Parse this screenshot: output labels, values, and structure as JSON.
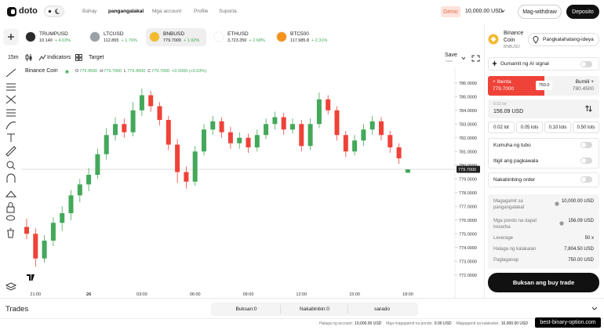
{
  "nav": {
    "logo": "doto",
    "links": [
      "Bahay",
      "pangangalakal",
      "Mga account",
      "Profile",
      "Suporta"
    ],
    "mode": "Demo",
    "balance": "10,000.00 USD",
    "withdraw": "Mag-withdraw",
    "deposit": "Deposito"
  },
  "assets": [
    {
      "name": "TRUMPUSD",
      "price": "10.140",
      "change": "+ 4.03%"
    },
    {
      "name": "LTCUSD",
      "price": "112.865",
      "change": "+ 1.76%"
    },
    {
      "name": "BNBUSD",
      "price": "779.7000",
      "change": "+ 1.92%"
    },
    {
      "name": "ETHUSD",
      "price": "3,723.350",
      "change": "+ 2.68%"
    },
    {
      "name": "BTC500",
      "price": "117,985.8",
      "change": "+ 2.31%"
    }
  ],
  "toolbar": {
    "interval": "15m",
    "indicators": "Indicators",
    "target": "Target",
    "save": "Save",
    "save_sub": "Save"
  },
  "chart_data": {
    "type": "candlestick",
    "title": "Binance Coin",
    "ohlc": [
      {
        "label": "O",
        "value": "779.4500"
      },
      {
        "label": "H",
        "value": "779.7000"
      },
      {
        "label": "L",
        "value": "779.4500"
      },
      {
        "label": "C",
        "value": "779.7000"
      }
    ],
    "change": "+0.2000 (+0.03%)",
    "categories": [
      null,
      "21:00",
      null,
      null,
      null,
      null,
      null,
      "26",
      null,
      null,
      null,
      null,
      null,
      "03:00",
      null,
      null,
      null,
      null,
      null,
      "06:00",
      null,
      null,
      null,
      null,
      null,
      "09:00",
      null,
      null,
      null,
      null,
      null,
      "12:00",
      null,
      null,
      null,
      null,
      null,
      "15:00",
      null,
      null,
      null,
      null,
      null,
      "18:00"
    ],
    "candles": [
      [
        775.5,
        776.1,
        774.6,
        775.0
      ],
      [
        775.0,
        775.4,
        772.6,
        773.2
      ],
      [
        773.2,
        774.9,
        772.9,
        774.5
      ],
      [
        774.5,
        776.2,
        774.1,
        775.8
      ],
      [
        775.8,
        777.0,
        775.2,
        776.5
      ],
      [
        776.5,
        778.2,
        776.0,
        777.8
      ],
      [
        777.8,
        779.0,
        777.3,
        778.6
      ],
      [
        778.6,
        779.8,
        778.1,
        779.3
      ],
      [
        779.3,
        781.2,
        779.0,
        780.8
      ],
      [
        780.8,
        782.7,
        780.4,
        782.2
      ],
      [
        782.2,
        783.5,
        781.8,
        783.0
      ],
      [
        783.0,
        783.4,
        782.0,
        782.4
      ],
      [
        782.4,
        784.6,
        782.1,
        784.0
      ],
      [
        784.0,
        785.6,
        783.6,
        785.1
      ],
      [
        785.1,
        785.4,
        783.9,
        784.3
      ],
      [
        784.3,
        784.6,
        782.9,
        783.3
      ],
      [
        783.3,
        783.6,
        781.1,
        781.5
      ],
      [
        781.5,
        781.9,
        778.7,
        779.5
      ],
      [
        779.5,
        779.9,
        778.3,
        778.8
      ],
      [
        778.8,
        781.4,
        778.5,
        781.0
      ],
      [
        781.0,
        783.0,
        780.7,
        782.6
      ],
      [
        782.6,
        783.6,
        782.2,
        783.2
      ],
      [
        783.2,
        783.5,
        782.0,
        782.4
      ],
      [
        782.4,
        782.8,
        781.2,
        781.6
      ],
      [
        781.6,
        782.4,
        781.2,
        782.0
      ],
      [
        782.0,
        782.3,
        780.9,
        781.3
      ],
      [
        781.3,
        782.6,
        781.0,
        782.2
      ],
      [
        782.2,
        783.4,
        781.9,
        783.0
      ],
      [
        783.0,
        783.9,
        782.6,
        783.5
      ],
      [
        783.5,
        783.8,
        782.2,
        782.6
      ],
      [
        782.6,
        783.4,
        782.3,
        783.0
      ],
      [
        783.0,
        783.3,
        781.0,
        781.4
      ],
      [
        781.4,
        783.4,
        781.1,
        783.0
      ],
      [
        783.0,
        785.3,
        782.7,
        784.8
      ],
      [
        784.8,
        785.1,
        783.7,
        784.0
      ],
      [
        784.0,
        784.3,
        781.8,
        782.2
      ],
      [
        782.2,
        782.5,
        780.6,
        781.0
      ],
      [
        781.0,
        782.2,
        780.7,
        781.8
      ],
      [
        781.8,
        783.0,
        781.4,
        782.6
      ],
      [
        782.6,
        783.6,
        782.2,
        783.2
      ],
      [
        783.2,
        783.5,
        781.8,
        782.2
      ],
      [
        782.2,
        782.5,
        780.9,
        781.3
      ],
      [
        781.3,
        781.6,
        780.1,
        780.5
      ],
      [
        779.45,
        779.7,
        779.45,
        779.7
      ]
    ],
    "ylim": [
      770.9,
      786.9
    ],
    "yticks": [
      {
        "value": 772,
        "label": "772.0000"
      },
      {
        "value": 773,
        "label": "773.0000"
      },
      {
        "value": 774,
        "label": "774.0000"
      },
      {
        "value": 775,
        "label": "775.0000"
      },
      {
        "value": 776,
        "label": "776.0000"
      },
      {
        "value": 777,
        "label": "777.0000"
      },
      {
        "value": 778,
        "label": "778.0000"
      },
      {
        "value": 779,
        "label": "779.0000"
      },
      {
        "value": 780,
        "label": "780.0000"
      },
      {
        "value": 781,
        "label": "781.0000"
      },
      {
        "value": 782,
        "label": "782.0000"
      },
      {
        "value": 783,
        "label": "783.0000"
      },
      {
        "value": 784,
        "label": "784.0000"
      },
      {
        "value": 785,
        "label": "785.0000"
      },
      {
        "value": 786,
        "label": "786.0000"
      }
    ],
    "last_price": {
      "value": 779.7,
      "label": "779.7000"
    },
    "up_color": "#43a85a",
    "down_color": "#ef4238",
    "grid": false
  },
  "panel": {
    "asset_name": "Binance Coin",
    "symbol": "BNBUSD",
    "overview": "Pangkalahatang-ideya",
    "ai_signal": "Gumamit ng AI signal",
    "sell_label": "+ Ibenta",
    "sell_price": "779.7000",
    "spread": "750.0",
    "buy_label": "Bumili +",
    "buy_price": "780.4500",
    "amount_caption": "0.01 lot",
    "amount": "156.09 USD",
    "lots": [
      "0.02 lot",
      "0.05 lots",
      "0.10 lots",
      "0.50 lots"
    ],
    "toggles": [
      "Kumuha ng tubo",
      "Itigil ang pagkawala",
      "Nakabinbing order"
    ],
    "info": [
      [
        "Magagamit sa pangangalakal",
        "10,000.00 USD"
      ],
      [
        "Mga pondo na dapat ireserba",
        "156.09 USD"
      ],
      [
        "Leverage",
        "50 x"
      ],
      [
        "Halaga ng kalakalan",
        "7,804.50 USD"
      ],
      [
        "Paglaganap",
        "750.00 USD"
      ]
    ],
    "submit": "Buksan ang buy trade"
  },
  "bottom": {
    "title": "Trades",
    "tabs": [
      "Buksan:0",
      "Nakabinbin:0",
      "sarado"
    ],
    "footer": [
      [
        "Halaga ng account:",
        "10,000.00 USD"
      ],
      [
        "Mga magagamit na pondo:",
        "0.00 USD"
      ],
      [
        "Magagamit sa kalakalan:",
        "10,000.00 USD"
      ]
    ],
    "watermark": "best-binary-option.com"
  }
}
